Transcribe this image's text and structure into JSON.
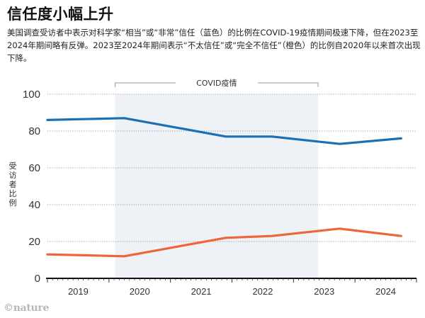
{
  "title": "信任度小幅上升",
  "subtitle": "美国调查受访者中表示对科学家“相当”或“非常”信任（蓝色）的比例在COVID-19疫情期间极速下降，但在2023至2024年期间略有反弹。2023至2024年期间表示“不太信任”或“完全不信任”（橙色）的比例自2020年以来首次出现下降。",
  "credit": "©nature",
  "chart_data": {
    "type": "line",
    "title": "信任度小幅上升",
    "xlabel": "",
    "ylabel": "受访者比例",
    "ylim": [
      0,
      100
    ],
    "xlim": [
      2019.0,
      2025.0
    ],
    "yticks": [
      0,
      20,
      40,
      60,
      80,
      100
    ],
    "xtick_labels": [
      "2019",
      "2020",
      "2021",
      "2022",
      "2023",
      "2024"
    ],
    "grid": true,
    "shaded_region": {
      "label": "COVID疫情",
      "x_start": 2020.1,
      "x_end": 2023.4,
      "color": "#eef2f6"
    },
    "x": [
      2019.0,
      2020.25,
      2021.9,
      2022.65,
      2023.75,
      2024.75
    ],
    "series": [
      {
        "name": "相当或非常信任",
        "color": "#1a6fb5",
        "values": [
          86,
          87,
          77,
          77,
          73,
          76
        ]
      },
      {
        "name": "不太信任或完全不信任",
        "color": "#f0643a",
        "values": [
          13,
          12,
          22,
          23,
          27,
          23
        ]
      }
    ]
  }
}
